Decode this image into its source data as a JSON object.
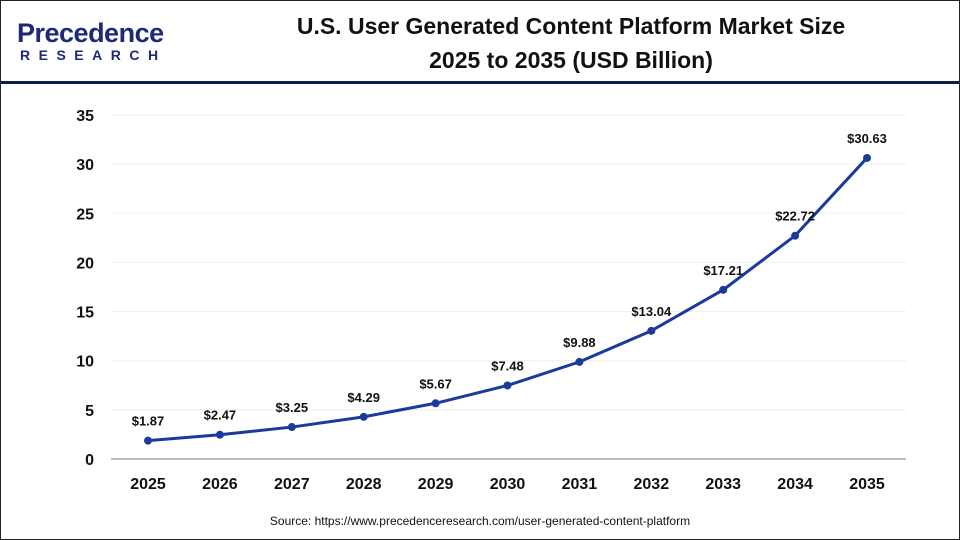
{
  "logo": {
    "line1": "Precedence",
    "line2": "RESEARCH"
  },
  "title_line1": "U.S. User Generated Content Platform Market Size",
  "title_line2": "2025 to 2035 (USD Billion)",
  "source": "Source: https://www.precedenceresearch.com/user-generated-content-platform",
  "chart_data": {
    "type": "line",
    "title": "U.S. User Generated Content Platform Market Size 2025 to 2035 (USD Billion)",
    "categories": [
      "2025",
      "2026",
      "2027",
      "2028",
      "2029",
      "2030",
      "2031",
      "2032",
      "2033",
      "2034",
      "2035"
    ],
    "values": [
      1.87,
      2.47,
      3.25,
      4.29,
      5.67,
      7.48,
      9.88,
      13.04,
      17.21,
      22.72,
      30.63
    ],
    "labels": [
      "$1.87",
      "$2.47",
      "$3.25",
      "$4.29",
      "$5.67",
      "$7.48",
      "$9.88",
      "$13.04",
      "$17.21",
      "$22.72",
      "$30.63"
    ],
    "ylim": [
      0,
      35
    ],
    "yticks": [
      0,
      5,
      10,
      15,
      20,
      25,
      30,
      35
    ],
    "grid": true,
    "color": "#1a3a9c"
  }
}
